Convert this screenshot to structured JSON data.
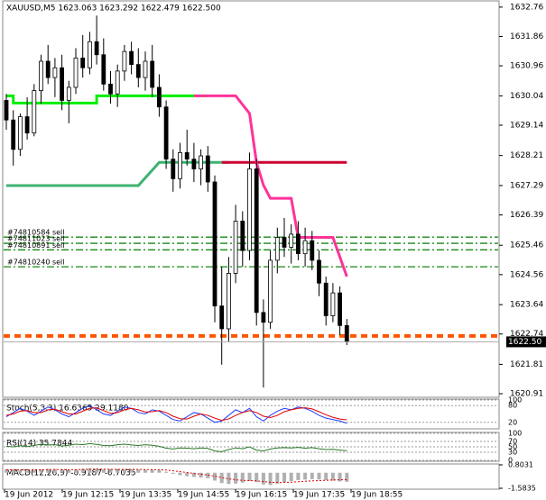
{
  "chart_data": {
    "type": "candlestick",
    "header": "XAUUSD,M5  1623.063 1623.292 1622.479 1622.500",
    "ylim": [
      1620.8,
      1632.95
    ],
    "yticks": [
      1632.76,
      1631.86,
      1630.96,
      1630.04,
      1629.14,
      1628.21,
      1627.29,
      1626.39,
      1625.46,
      1624.56,
      1623.64,
      1622.74,
      1621.81,
      1620.91
    ],
    "time_labels": [
      "19 Jun 2012",
      "19 Jun 12:15",
      "19 Jun 13:35",
      "19 Jun 14:55",
      "19 Jun 16:15",
      "19 Jun 17:35",
      "19 Jun 18:55"
    ],
    "candles": [
      [
        1629.9,
        1630.1,
        1629.0,
        1629.3
      ],
      [
        1629.3,
        1629.6,
        1627.9,
        1628.4
      ],
      [
        1628.4,
        1629.5,
        1628.2,
        1629.4
      ],
      [
        1629.4,
        1630.0,
        1628.7,
        1628.9
      ],
      [
        1628.9,
        1630.4,
        1628.8,
        1630.2
      ],
      [
        1630.2,
        1631.3,
        1629.8,
        1631.1
      ],
      [
        1631.1,
        1631.6,
        1630.4,
        1630.6
      ],
      [
        1630.6,
        1631.2,
        1630.0,
        1630.9
      ],
      [
        1630.9,
        1631.3,
        1629.6,
        1629.9
      ],
      [
        1629.9,
        1630.5,
        1629.2,
        1630.3
      ],
      [
        1630.3,
        1631.5,
        1630.1,
        1631.2
      ],
      [
        1631.2,
        1631.9,
        1630.6,
        1630.9
      ],
      [
        1630.9,
        1632.0,
        1630.7,
        1631.7
      ],
      [
        1631.7,
        1632.5,
        1631.0,
        1631.3
      ],
      [
        1631.3,
        1631.8,
        1630.2,
        1630.4
      ],
      [
        1630.4,
        1630.8,
        1629.8,
        1630.1
      ],
      [
        1630.1,
        1631.0,
        1629.7,
        1630.8
      ],
      [
        1630.8,
        1631.6,
        1630.5,
        1631.4
      ],
      [
        1631.4,
        1631.7,
        1630.7,
        1631.0
      ],
      [
        1631.0,
        1631.5,
        1630.3,
        1630.6
      ],
      [
        1630.6,
        1631.4,
        1630.2,
        1631.1
      ],
      [
        1631.1,
        1631.6,
        1630.0,
        1630.3
      ],
      [
        1630.3,
        1630.7,
        1629.4,
        1629.7
      ],
      [
        1629.7,
        1629.9,
        1627.8,
        1628.1
      ],
      [
        1628.1,
        1628.4,
        1627.1,
        1627.5
      ],
      [
        1627.5,
        1628.6,
        1627.2,
        1628.3
      ],
      [
        1628.3,
        1629.0,
        1627.9,
        1628.1
      ],
      [
        1628.1,
        1628.6,
        1627.4,
        1627.8
      ],
      [
        1627.8,
        1628.4,
        1627.3,
        1628.2
      ],
      [
        1628.2,
        1628.5,
        1627.1,
        1627.4
      ],
      [
        1627.4,
        1627.6,
        1623.1,
        1623.6
      ],
      [
        1623.6,
        1624.8,
        1621.8,
        1622.9
      ],
      [
        1622.9,
        1625.1,
        1622.5,
        1624.6
      ],
      [
        1624.6,
        1626.7,
        1624.3,
        1626.2
      ],
      [
        1626.2,
        1626.5,
        1624.8,
        1625.3
      ],
      [
        1625.3,
        1628.3,
        1625.0,
        1627.8
      ],
      [
        1627.8,
        1628.1,
        1623.0,
        1623.4
      ],
      [
        1623.4,
        1623.8,
        1621.1,
        1623.1
      ],
      [
        1623.1,
        1625.3,
        1622.9,
        1625.0
      ],
      [
        1625.0,
        1626.0,
        1624.6,
        1625.7
      ],
      [
        1625.7,
        1626.3,
        1625.1,
        1625.4
      ],
      [
        1625.4,
        1626.1,
        1624.9,
        1625.8
      ],
      [
        1625.8,
        1626.2,
        1625.0,
        1625.2
      ],
      [
        1625.2,
        1626.0,
        1624.8,
        1625.6
      ],
      [
        1625.6,
        1625.9,
        1624.7,
        1625.0
      ],
      [
        1625.0,
        1625.3,
        1623.9,
        1624.3
      ],
      [
        1624.3,
        1624.5,
        1623.0,
        1623.3
      ],
      [
        1623.3,
        1624.3,
        1623.1,
        1624.0
      ],
      [
        1624.0,
        1624.2,
        1622.7,
        1623.0
      ],
      [
        1623.0,
        1623.2,
        1622.4,
        1622.5
      ]
    ],
    "overlays": [
      {
        "color": "#00ee00",
        "x": [
          0,
          1,
          1,
          13,
          13,
          29
        ],
        "values": [
          1630.04,
          1630.04,
          1629.82,
          1629.82,
          1630.04,
          1630.04
        ]
      },
      {
        "color": "#3cb371",
        "x": [
          0,
          19,
          22,
          32
        ],
        "values": [
          1627.29,
          1627.29,
          1628.0,
          1628.0
        ]
      },
      {
        "color": "#cc0033",
        "x": [
          31,
          49
        ],
        "values": [
          1628.0,
          1628.0
        ]
      },
      {
        "color": "#ff3399",
        "x": [
          27,
          33,
          35,
          36,
          37,
          38,
          41,
          42,
          47,
          49
        ],
        "values": [
          1630.04,
          1630.04,
          1629.5,
          1628.0,
          1627.3,
          1626.9,
          1626.9,
          1625.7,
          1625.7,
          1624.5
        ]
      }
    ],
    "orders": [
      {
        "label": "#74810584 sell",
        "price": 1625.71
      },
      {
        "label": "#74811023 sell",
        "price": 1625.52
      },
      {
        "label": "#74810891 sell",
        "price": 1625.32
      },
      {
        "label": "#74810240 sell",
        "price": 1624.8
      }
    ],
    "order_color": "#138a13",
    "stop_line": {
      "price": 1622.68,
      "color": "#ff5500"
    },
    "bid": {
      "value": 1622.5,
      "label": "1622.50"
    },
    "stoch": {
      "title": "Stoch(5,3,3) 16.6365 29.1180",
      "ylim": [
        0,
        100
      ],
      "yticks": [
        100,
        80,
        20
      ],
      "main": [
        40,
        55,
        70,
        60,
        45,
        60,
        75,
        65,
        50,
        40,
        55,
        70,
        80,
        65,
        50,
        45,
        60,
        75,
        70,
        55,
        50,
        65,
        60,
        45,
        30,
        25,
        40,
        55,
        50,
        35,
        20,
        25,
        45,
        65,
        55,
        70,
        40,
        25,
        45,
        60,
        70,
        65,
        75,
        70,
        60,
        45,
        35,
        30,
        25,
        16.6365
      ],
      "signal": [
        45,
        50,
        60,
        62,
        55,
        55,
        65,
        67,
        58,
        50,
        50,
        60,
        70,
        72,
        62,
        52,
        55,
        65,
        70,
        65,
        57,
        58,
        62,
        55,
        42,
        33,
        32,
        42,
        50,
        45,
        35,
        27,
        32,
        45,
        55,
        62,
        55,
        42,
        37,
        45,
        58,
        65,
        70,
        72,
        68,
        58,
        47,
        38,
        32,
        29.118
      ]
    },
    "rsi": {
      "title": "RSI(14) 35.7844",
      "ylim": [
        0,
        100
      ],
      "yticks": [
        100,
        70,
        50,
        30,
        0
      ],
      "values": [
        52,
        50,
        54,
        51,
        55,
        60,
        57,
        58,
        53,
        56,
        60,
        58,
        62,
        59,
        55,
        54,
        58,
        60,
        57,
        55,
        58,
        56,
        52,
        45,
        42,
        46,
        45,
        43,
        46,
        44,
        35,
        32,
        40,
        46,
        43,
        50,
        38,
        35,
        42,
        46,
        47,
        46,
        48,
        45,
        47,
        43,
        40,
        41,
        38,
        35.7844
      ]
    },
    "macd": {
      "title": "MACD(12,26,9) -0.9187 -0.7035",
      "ylim": [
        -1.5835,
        0.8031
      ],
      "yticks": [
        0.8031,
        -1.5835
      ],
      "hist": [
        0.35,
        0.3,
        0.25,
        0.2,
        0.25,
        0.35,
        0.4,
        0.38,
        0.3,
        0.28,
        0.32,
        0.4,
        0.45,
        0.42,
        0.35,
        0.3,
        0.3,
        0.35,
        0.36,
        0.33,
        0.3,
        0.3,
        0.25,
        0.1,
        -0.1,
        -0.25,
        -0.35,
        -0.42,
        -0.48,
        -0.55,
        -0.8,
        -1.05,
        -1.15,
        -1.1,
        -1.0,
        -0.85,
        -0.95,
        -1.2,
        -1.25,
        -1.1,
        -0.95,
        -0.85,
        -0.75,
        -0.7,
        -0.65,
        -0.68,
        -0.75,
        -0.82,
        -0.88,
        -0.9187
      ],
      "signal": [
        0.3,
        0.3,
        0.29,
        0.27,
        0.27,
        0.29,
        0.31,
        0.33,
        0.32,
        0.31,
        0.31,
        0.33,
        0.35,
        0.37,
        0.36,
        0.35,
        0.34,
        0.34,
        0.35,
        0.34,
        0.33,
        0.32,
        0.31,
        0.27,
        0.2,
        0.11,
        0.02,
        -0.07,
        -0.15,
        -0.23,
        -0.35,
        -0.49,
        -0.62,
        -0.72,
        -0.78,
        -0.8,
        -0.83,
        -0.9,
        -0.97,
        -1.0,
        -0.99,
        -0.96,
        -0.92,
        -0.87,
        -0.83,
        -0.8,
        -0.77,
        -0.74,
        -0.72,
        -0.7035
      ]
    }
  }
}
